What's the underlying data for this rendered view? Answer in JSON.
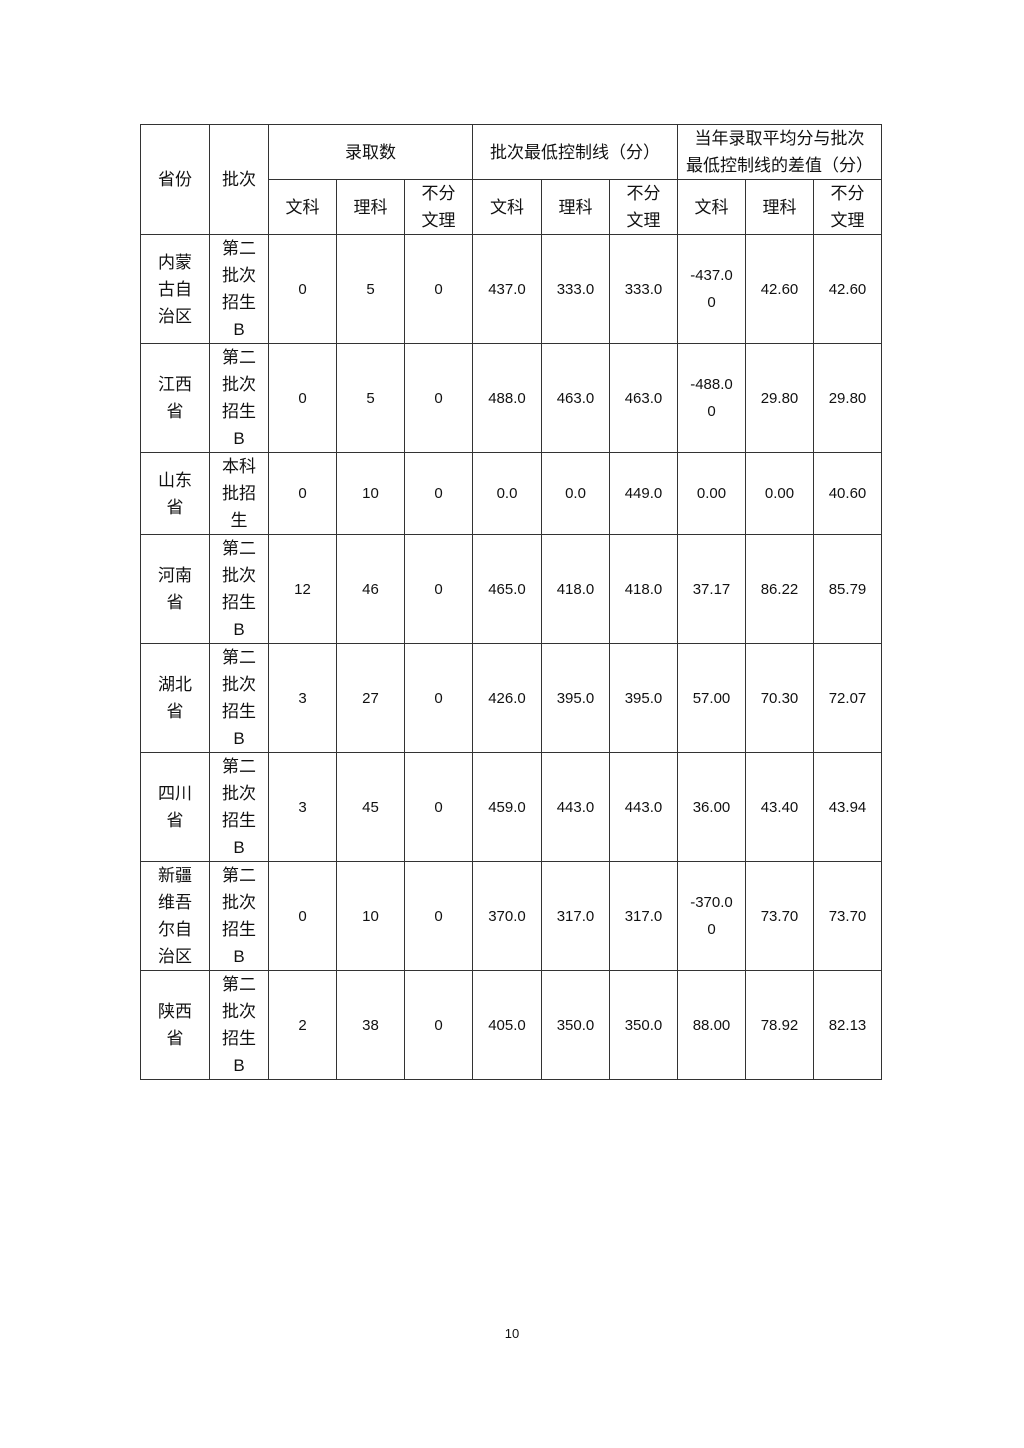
{
  "table": {
    "header": {
      "province": "省份",
      "batch": "批次",
      "admitted": "录取数",
      "control_line": "批次最低控制线（分）",
      "diff_lines": [
        "当年录取平均分与批次",
        "最低控制线的差值（分）"
      ],
      "sub": [
        "文科",
        "理科",
        "不分文理",
        "文科",
        "理科",
        "不分文理",
        "文科",
        "理科",
        "不分文理"
      ]
    },
    "rows": [
      {
        "province": "内蒙古自治区",
        "batch": "第二批次招生B",
        "values": [
          "0",
          "5",
          "0",
          "437.0",
          "333.0",
          "333.0",
          "-437.00",
          "42.60",
          "42.60"
        ]
      },
      {
        "province": "江西省",
        "batch": "第二批次招生B",
        "values": [
          "0",
          "5",
          "0",
          "488.0",
          "463.0",
          "463.0",
          "-488.00",
          "29.80",
          "29.80"
        ]
      },
      {
        "province": "山东省",
        "batch": "本科批招生",
        "values": [
          "0",
          "10",
          "0",
          "0.0",
          "0.0",
          "449.0",
          "0.00",
          "0.00",
          "40.60"
        ]
      },
      {
        "province": "河南省",
        "batch": "第二批次招生B",
        "values": [
          "12",
          "46",
          "0",
          "465.0",
          "418.0",
          "418.0",
          "37.17",
          "86.22",
          "85.79"
        ]
      },
      {
        "province": "湖北省",
        "batch": "第二批次招生B",
        "values": [
          "3",
          "27",
          "0",
          "426.0",
          "395.0",
          "395.0",
          "57.00",
          "70.30",
          "72.07"
        ]
      },
      {
        "province": "四川省",
        "batch": "第二批次招生B",
        "values": [
          "3",
          "45",
          "0",
          "459.0",
          "443.0",
          "443.0",
          "36.00",
          "43.40",
          "43.94"
        ]
      },
      {
        "province": "新疆维吾尔自治区",
        "batch": "第二批次招生B",
        "values": [
          "0",
          "10",
          "0",
          "370.0",
          "317.0",
          "317.0",
          "-370.00",
          "73.70",
          "73.70"
        ]
      },
      {
        "province": "陕西省",
        "batch": "第二批次招生B",
        "values": [
          "2",
          "38",
          "0",
          "405.0",
          "350.0",
          "350.0",
          "88.00",
          "78.92",
          "82.13"
        ]
      }
    ]
  },
  "page_number": "10"
}
